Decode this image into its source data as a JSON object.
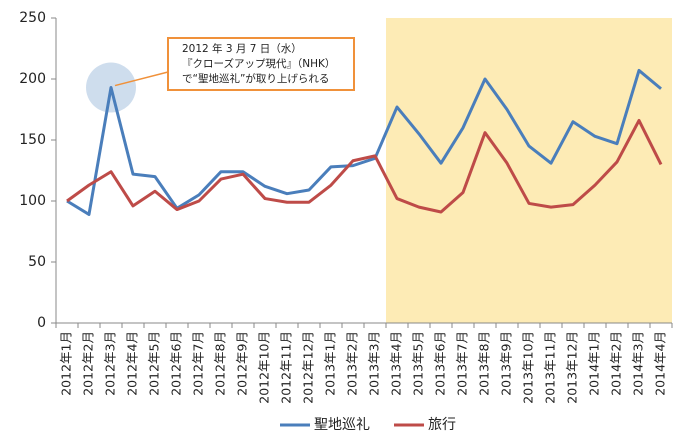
{
  "chart_data": {
    "type": "line",
    "categories": [
      "2012年1月",
      "2012年2月",
      "2012年3月",
      "2012年4月",
      "2012年5月",
      "2012年6月",
      "2012年7月",
      "2012年8月",
      "2012年9月",
      "2012年10月",
      "2012年11月",
      "2012年12月",
      "2013年1月",
      "2013年2月",
      "2013年3月",
      "2013年4月",
      "2013年5月",
      "2013年6月",
      "2013年7月",
      "2013年8月",
      "2013年9月",
      "2013年10月",
      "2013年11月",
      "2013年12月",
      "2014年1月",
      "2014年2月",
      "2014年3月",
      "2014年4月"
    ],
    "series": [
      {
        "name": "聖地巡礼",
        "color": "#4a7ebb",
        "values": [
          100,
          89,
          193,
          122,
          120,
          94,
          105,
          124,
          124,
          112,
          106,
          109,
          128,
          129,
          135,
          177,
          155,
          131,
          160,
          200,
          175,
          145,
          131,
          165,
          153,
          147,
          207,
          192
        ]
      },
      {
        "name": "旅行",
        "color": "#be4b48",
        "values": [
          100,
          113,
          124,
          96,
          108,
          93,
          100,
          118,
          122,
          102,
          99,
          99,
          113,
          133,
          137,
          102,
          95,
          91,
          107,
          156,
          131,
          98,
          95,
          97,
          113,
          132,
          166,
          130
        ]
      }
    ],
    "ylim": [
      0,
      250
    ],
    "yticks": [
      0,
      50,
      100,
      150,
      200,
      250
    ],
    "grid": false,
    "highlight": {
      "from_index": 15,
      "color": "#fdebb5"
    },
    "annotation": {
      "lines": [
        "2012 年 3 月 7 日（水）",
        "『クローズアップ現代』（NHK）",
        "で“聖地巡礼”が取り上げられる"
      ],
      "border_color": "#f0913a"
    },
    "legend": "bottom"
  }
}
